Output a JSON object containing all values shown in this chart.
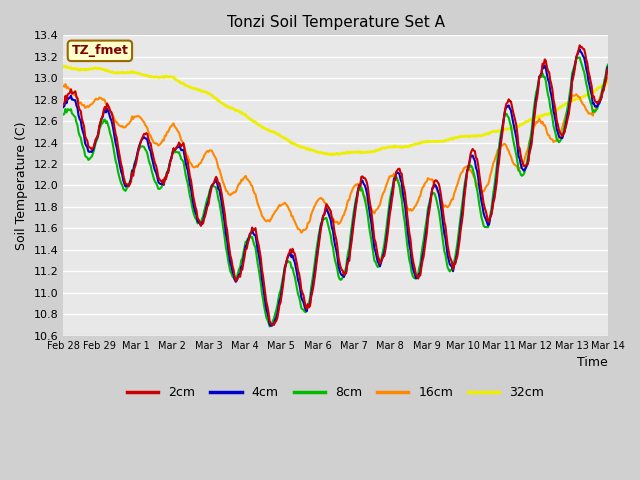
{
  "title": "Tonzi Soil Temperature Set A",
  "xlabel": "Time",
  "ylabel": "Soil Temperature (C)",
  "ylim": [
    10.6,
    13.4
  ],
  "colors": {
    "2cm": "#cc0000",
    "4cm": "#0000cc",
    "8cm": "#00bb00",
    "16cm": "#ff8800",
    "32cm": "#eeee00"
  },
  "annotation_text": "TZ_fmet",
  "annotation_fg": "#800000",
  "annotation_bg": "#ffffcc",
  "annotation_edge": "#996600",
  "fig_bg": "#d0d0d0",
  "plot_bg": "#e8e8e8",
  "grid_color": "#ffffff",
  "tick_labels": [
    "Feb 28",
    "Feb 29",
    "Mar 1",
    "Mar 2",
    "Mar 3",
    "Mar 4",
    "Mar 5",
    "Mar 6",
    "Mar 7",
    "Mar 8",
    "Mar 9",
    "Mar 10",
    "Mar 11",
    "Mar 12",
    "Mar 13",
    "Mar 14"
  ],
  "tick_positions": [
    0,
    1,
    2,
    3,
    4,
    5,
    6,
    7,
    8,
    9,
    10,
    11,
    12,
    13,
    14,
    15
  ],
  "yticks": [
    10.6,
    10.8,
    11.0,
    11.2,
    11.4,
    11.6,
    11.8,
    12.0,
    12.2,
    12.4,
    12.6,
    12.8,
    13.0,
    13.2,
    13.4
  ]
}
